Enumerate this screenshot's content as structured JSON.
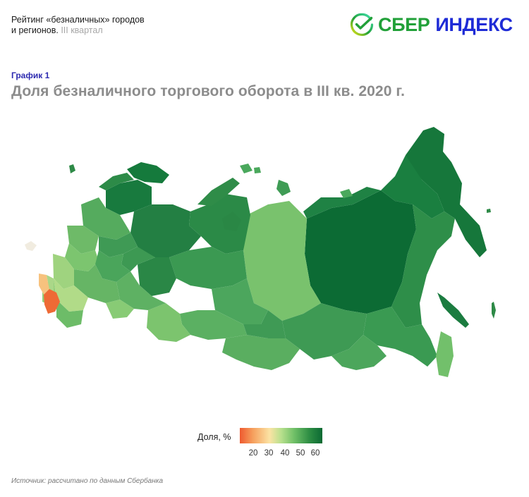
{
  "header": {
    "report_title_line1": "Рейтинг «безналичных» городов",
    "report_title_line2": "и регионов.",
    "period": "III квартал"
  },
  "brand": {
    "word1": "СБЕР",
    "word2": "ИНДЕКС",
    "icon": "sber-check-circle-icon",
    "colors": {
      "green": "#21a038",
      "blue": "#1e2bd6"
    }
  },
  "chart": {
    "number_label": "График 1",
    "title": "Доля безналичного торгового оборота в III кв. 2020 г."
  },
  "legend": {
    "label": "Доля, %",
    "ticks": [
      "20",
      "30",
      "40",
      "50",
      "60"
    ],
    "scale_min": 15,
    "scale_max": 65,
    "colors": [
      "#ee5a2f",
      "#f6a05e",
      "#fbe3a4",
      "#b8e08d",
      "#6fbf67",
      "#2e8e44",
      "#0b6a33"
    ]
  },
  "source": "Источник: рассчитано по данным Сбербанка"
}
